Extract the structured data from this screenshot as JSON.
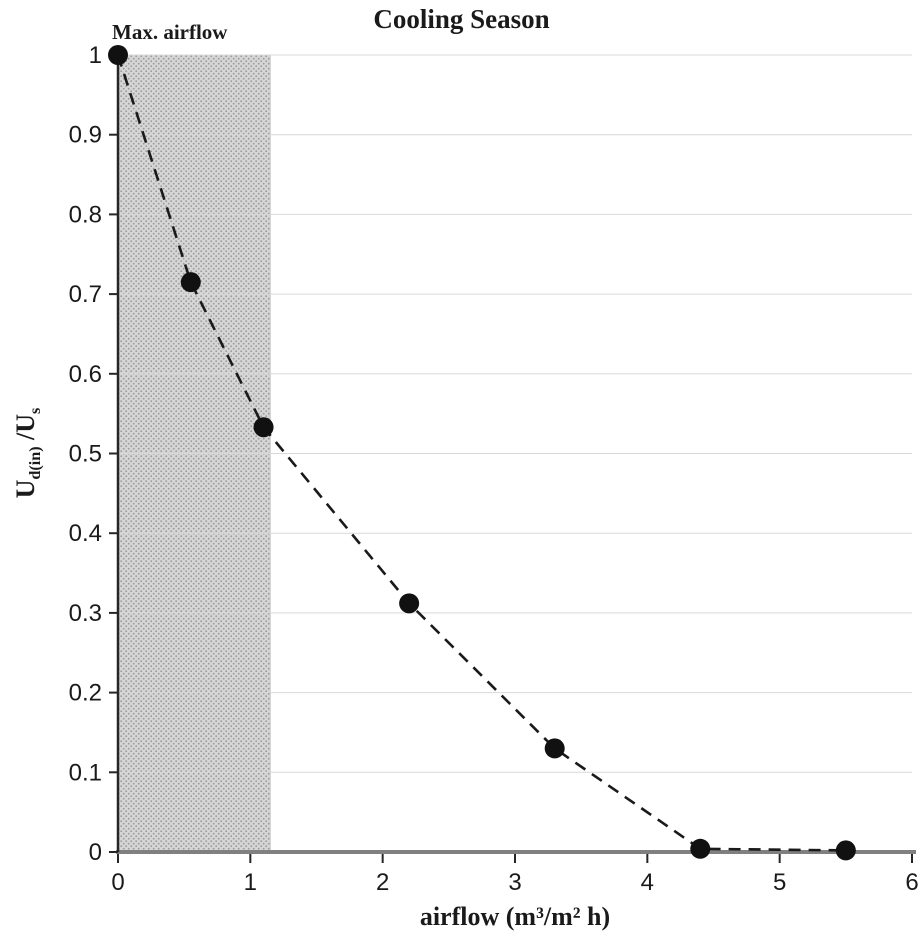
{
  "chart_data": {
    "type": "line",
    "title": "Cooling Season",
    "xlabel": "airflow (m³/m² h)",
    "ylabel_parts": [
      {
        "text": "U",
        "sub": false
      },
      {
        "text": "d(in)",
        "sub": true
      },
      {
        "text": " /U",
        "sub": false
      },
      {
        "text": "s",
        "sub": true
      }
    ],
    "xlim": [
      0,
      6
    ],
    "ylim": [
      0,
      1
    ],
    "xticks": [
      0,
      1,
      2,
      3,
      4,
      5,
      6
    ],
    "yticks": [
      0,
      0.1,
      0.2,
      0.3,
      0.4,
      0.5,
      0.6,
      0.7,
      0.8,
      0.9,
      1
    ],
    "grid": "horizontal",
    "legend": "none",
    "series": [
      {
        "name": "Ud(in)/Us ratio",
        "line_style": "dashed",
        "marker": "circle",
        "x": [
          0,
          0.55,
          1.1,
          2.2,
          3.3,
          4.4,
          5.5
        ],
        "y": [
          1.0,
          0.715,
          0.533,
          0.312,
          0.13,
          0.004,
          0.002
        ]
      }
    ],
    "annotation": {
      "label": "Max. airflow",
      "band_x0": 0,
      "band_x1": 1.15
    },
    "colors": {
      "line": "#1a1a1a",
      "marker": "#111111",
      "grid": "#d9d9d9",
      "x_axis": "#808080",
      "y_axis": "#262626",
      "tick": "#262626",
      "band_fill": "#d6d6d6",
      "band_dot": "#9a9a9a"
    }
  }
}
